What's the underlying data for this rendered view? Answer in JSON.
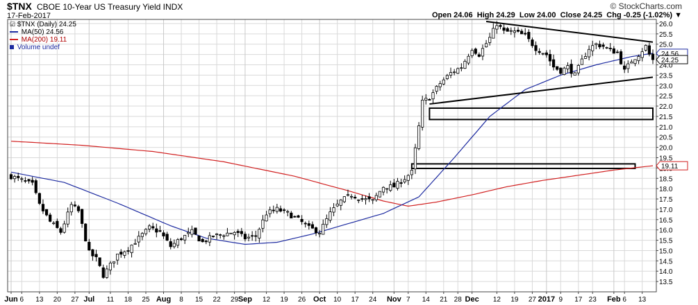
{
  "header": {
    "symbol": "$TNX",
    "name": "CBOE 10-Year US Treasury Yield INDX",
    "brand": "© StockCharts.com",
    "date": "17-Feb-2017",
    "open": "Open 24.06",
    "high": "High 24.29",
    "low": "Low 24.00",
    "close": "Close 24.25",
    "chg": "Chg -0.25 (-1.02%)",
    "chg_arrow": "▼"
  },
  "legend": {
    "price": "$TNX (Daily) 24.25",
    "ma50": "MA(50) 24.56",
    "ma200": "MA(200) 19.11",
    "volume": "Volume undef"
  },
  "colors": {
    "price": "#000000",
    "ma50": "#1c2aa0",
    "ma200": "#d11f1f",
    "grid": "#d9d9d9",
    "frame": "#444444"
  },
  "chart_data": {
    "type": "candlestick",
    "y_axis": {
      "min": 13.0,
      "max": 26.2,
      "position": "right",
      "ticks": [
        "13.5",
        "14.0",
        "14.5",
        "15.0",
        "15.5",
        "16.0",
        "16.5",
        "17.0",
        "17.5",
        "18.0",
        "18.5",
        "19.0",
        "19.5",
        "20.0",
        "20.5",
        "21.0",
        "21.5",
        "22.0",
        "22.5",
        "23.0",
        "23.5",
        "24.0",
        "24.5",
        "25.0",
        "25.5",
        "26.0"
      ]
    },
    "x_axis": {
      "n_sessions": 182,
      "ticks": [
        {
          "label": "Jun",
          "i": 0,
          "major": true
        },
        {
          "label": "6",
          "i": 3
        },
        {
          "label": "13",
          "i": 8
        },
        {
          "label": "20",
          "i": 13
        },
        {
          "label": "27",
          "i": 18
        },
        {
          "label": "Jul",
          "i": 22,
          "major": true
        },
        {
          "label": "11",
          "i": 28
        },
        {
          "label": "18",
          "i": 33
        },
        {
          "label": "25",
          "i": 38
        },
        {
          "label": "Aug",
          "i": 43,
          "major": true
        },
        {
          "label": "8",
          "i": 48
        },
        {
          "label": "15",
          "i": 53
        },
        {
          "label": "22",
          "i": 58
        },
        {
          "label": "29",
          "i": 63
        },
        {
          "label": "Sep",
          "i": 66,
          "major": true
        },
        {
          "label": "12",
          "i": 72
        },
        {
          "label": "19",
          "i": 77
        },
        {
          "label": "26",
          "i": 82
        },
        {
          "label": "Oct",
          "i": 87,
          "major": true
        },
        {
          "label": "10",
          "i": 92
        },
        {
          "label": "17",
          "i": 97
        },
        {
          "label": "24",
          "i": 102
        },
        {
          "label": "Nov",
          "i": 108,
          "major": true
        },
        {
          "label": "7",
          "i": 112
        },
        {
          "label": "14",
          "i": 117
        },
        {
          "label": "21",
          "i": 122
        },
        {
          "label": "28",
          "i": 126
        },
        {
          "label": "Dec",
          "i": 130,
          "major": true
        },
        {
          "label": "12",
          "i": 137
        },
        {
          "label": "19",
          "i": 142
        },
        {
          "label": "27",
          "i": 147
        },
        {
          "label": "2017",
          "i": 151,
          "major": true
        },
        {
          "label": "9",
          "i": 155
        },
        {
          "label": "17",
          "i": 160
        },
        {
          "label": "23",
          "i": 164
        },
        {
          "label": "Feb",
          "i": 170,
          "major": true
        },
        {
          "label": "6",
          "i": 173
        },
        {
          "label": "13",
          "i": 178
        }
      ]
    },
    "close_keyframes": [
      [
        0,
        18.6
      ],
      [
        3,
        18.4
      ],
      [
        6,
        18.2
      ],
      [
        8,
        17.2
      ],
      [
        11,
        16.4
      ],
      [
        14,
        15.9
      ],
      [
        17,
        17.2
      ],
      [
        19,
        16.9
      ],
      [
        22,
        14.9
      ],
      [
        24,
        14.6
      ],
      [
        26,
        13.8
      ],
      [
        28,
        14.3
      ],
      [
        30,
        14.8
      ],
      [
        33,
        15.1
      ],
      [
        36,
        15.6
      ],
      [
        39,
        16.1
      ],
      [
        42,
        15.9
      ],
      [
        45,
        15.2
      ],
      [
        48,
        15.6
      ],
      [
        51,
        15.9
      ],
      [
        54,
        15.4
      ],
      [
        57,
        15.7
      ],
      [
        60,
        15.8
      ],
      [
        63,
        15.9
      ],
      [
        66,
        15.6
      ],
      [
        69,
        15.7
      ],
      [
        72,
        16.8
      ],
      [
        75,
        17.0
      ],
      [
        78,
        16.8
      ],
      [
        81,
        16.5
      ],
      [
        84,
        16.1
      ],
      [
        87,
        15.9
      ],
      [
        90,
        16.8
      ],
      [
        93,
        17.4
      ],
      [
        96,
        17.7
      ],
      [
        99,
        17.5
      ],
      [
        102,
        17.4
      ],
      [
        105,
        18.1
      ],
      [
        108,
        18.1
      ],
      [
        111,
        18.5
      ],
      [
        113,
        18.8
      ],
      [
        114,
        19.9
      ],
      [
        115,
        21.0
      ],
      [
        116,
        22.2
      ],
      [
        118,
        22.4
      ],
      [
        121,
        23.1
      ],
      [
        124,
        23.6
      ],
      [
        127,
        23.9
      ],
      [
        130,
        24.8
      ],
      [
        132,
        24.5
      ],
      [
        135,
        25.3
      ],
      [
        137,
        26.0
      ],
      [
        139,
        25.6
      ],
      [
        142,
        25.6
      ],
      [
        145,
        25.4
      ],
      [
        148,
        24.8
      ],
      [
        151,
        24.5
      ],
      [
        153,
        23.9
      ],
      [
        155,
        23.7
      ],
      [
        157,
        23.9
      ],
      [
        159,
        23.5
      ],
      [
        161,
        24.2
      ],
      [
        163,
        24.8
      ],
      [
        165,
        25.0
      ],
      [
        167,
        24.9
      ],
      [
        169,
        24.7
      ],
      [
        171,
        24.6
      ],
      [
        173,
        23.7
      ],
      [
        175,
        24.2
      ],
      [
        177,
        24.5
      ],
      [
        179,
        24.9
      ],
      [
        180,
        24.5
      ],
      [
        181,
        24.25
      ]
    ],
    "ma50_keyframes": [
      [
        0,
        18.8
      ],
      [
        15,
        18.3
      ],
      [
        30,
        17.3
      ],
      [
        45,
        16.2
      ],
      [
        55,
        15.6
      ],
      [
        66,
        15.3
      ],
      [
        75,
        15.4
      ],
      [
        85,
        15.8
      ],
      [
        95,
        16.3
      ],
      [
        105,
        16.8
      ],
      [
        115,
        17.6
      ],
      [
        125,
        19.5
      ],
      [
        135,
        21.5
      ],
      [
        145,
        22.8
      ],
      [
        155,
        23.5
      ],
      [
        165,
        24.0
      ],
      [
        175,
        24.4
      ],
      [
        181,
        24.56
      ]
    ],
    "ma200_keyframes": [
      [
        0,
        20.3
      ],
      [
        20,
        20.1
      ],
      [
        40,
        19.8
      ],
      [
        60,
        19.3
      ],
      [
        80,
        18.6
      ],
      [
        95,
        17.9
      ],
      [
        105,
        17.4
      ],
      [
        112,
        17.15
      ],
      [
        120,
        17.35
      ],
      [
        130,
        17.7
      ],
      [
        140,
        18.1
      ],
      [
        150,
        18.4
      ],
      [
        160,
        18.65
      ],
      [
        170,
        18.9
      ],
      [
        181,
        19.11
      ]
    ],
    "last_values": {
      "close": "24.25",
      "ma50": "24.56",
      "ma200": "19.11"
    },
    "annotations": {
      "resistance_line": [
        [
          134,
          26.1
        ],
        [
          181,
          25.1
        ]
      ],
      "support_line": [
        [
          118,
          22.1
        ],
        [
          181,
          23.4
        ]
      ],
      "box_upper": {
        "i0": 118,
        "i1": 181,
        "y_top": 21.9,
        "y_bottom": 21.35
      },
      "box_lower": {
        "i0": 113,
        "i1": 176,
        "y_top": 19.2,
        "y_bottom": 18.98
      }
    }
  }
}
